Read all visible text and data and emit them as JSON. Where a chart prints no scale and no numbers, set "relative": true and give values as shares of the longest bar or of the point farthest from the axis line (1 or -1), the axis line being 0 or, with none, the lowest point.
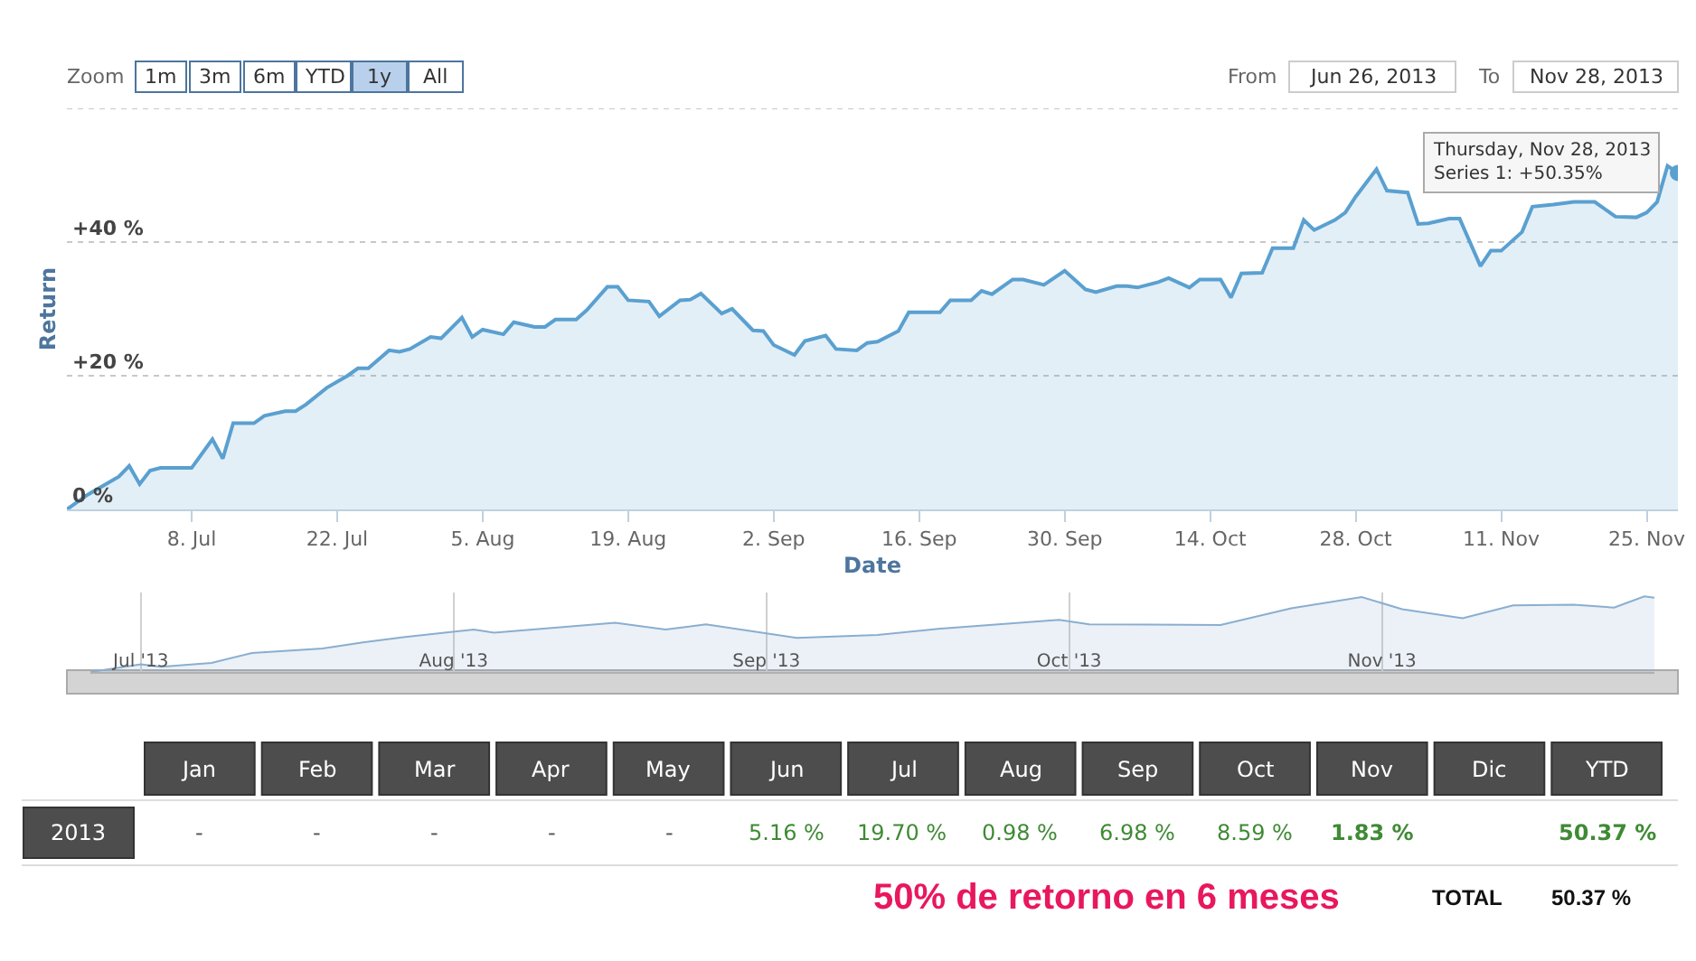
{
  "chart_data": [
    {
      "type": "area",
      "xlabel": "Date",
      "ylabel": "Return",
      "x": [
        "2013-06-26",
        "2013-06-28",
        "2013-07-01",
        "2013-07-02",
        "2013-07-03",
        "2013-07-04",
        "2013-07-05",
        "2013-07-08",
        "2013-07-10",
        "2013-07-11",
        "2013-07-12",
        "2013-07-14",
        "2013-07-15",
        "2013-07-17",
        "2013-07-18",
        "2013-07-19",
        "2013-07-21",
        "2013-07-23",
        "2013-07-24",
        "2013-07-25",
        "2013-07-27",
        "2013-07-28",
        "2013-07-29",
        "2013-07-31",
        "2013-08-01",
        "2013-08-03",
        "2013-08-04",
        "2013-08-05",
        "2013-08-07",
        "2013-08-08",
        "2013-08-10",
        "2013-08-11",
        "2013-08-12",
        "2013-08-14",
        "2013-08-15",
        "2013-08-17",
        "2013-08-18",
        "2013-08-19",
        "2013-08-21",
        "2013-08-22",
        "2013-08-24",
        "2013-08-25",
        "2013-08-26",
        "2013-08-28",
        "2013-08-29",
        "2013-08-31",
        "2013-09-01",
        "2013-09-02",
        "2013-09-04",
        "2013-09-05",
        "2013-09-07",
        "2013-09-08",
        "2013-09-10",
        "2013-09-11",
        "2013-09-12",
        "2013-09-14",
        "2013-09-15",
        "2013-09-18",
        "2013-09-19",
        "2013-09-21",
        "2013-09-22",
        "2013-09-23",
        "2013-09-25",
        "2013-09-26",
        "2013-09-28",
        "2013-09-30",
        "2013-10-02",
        "2013-10-03",
        "2013-10-05",
        "2013-10-06",
        "2013-10-07",
        "2013-10-09",
        "2013-10-10",
        "2013-10-12",
        "2013-10-13",
        "2013-10-15",
        "2013-10-16",
        "2013-10-17",
        "2013-10-19",
        "2013-10-20",
        "2013-10-22",
        "2013-10-23",
        "2013-10-24",
        "2013-10-26",
        "2013-10-27",
        "2013-10-28",
        "2013-10-30",
        "2013-10-31",
        "2013-11-02",
        "2013-11-03",
        "2013-11-04",
        "2013-11-06",
        "2013-11-07",
        "2013-11-09",
        "2013-11-10",
        "2013-11-11",
        "2013-11-13",
        "2013-11-14",
        "2013-11-16",
        "2013-11-18",
        "2013-11-20",
        "2013-11-22",
        "2013-11-24",
        "2013-11-25",
        "2013-11-26",
        "2013-11-27",
        "2013-11-28"
      ],
      "series": [
        {
          "color": "#5aa0d0",
          "values": [
            0,
            2.2,
            4.9,
            6.5,
            3.8,
            5.8,
            6.2,
            6.2,
            10.5,
            7.6,
            12.9,
            12.9,
            14,
            14.7,
            14.7,
            15.7,
            18.2,
            20,
            21.1,
            21.1,
            23.8,
            23.6,
            24,
            25.8,
            25.6,
            28.7,
            25.8,
            26.9,
            26.2,
            28,
            27.3,
            27.3,
            28.4,
            28.4,
            29.8,
            33.3,
            33.3,
            31.3,
            31.1,
            28.9,
            31.3,
            31.4,
            32.3,
            29.3,
            30,
            26.8,
            26.7,
            24.6,
            23.1,
            25.2,
            26,
            24,
            23.8,
            24.9,
            25.1,
            26.7,
            29.5,
            29.5,
            31.3,
            31.3,
            32.7,
            32.2,
            34.4,
            34.4,
            33.6,
            35.7,
            32.9,
            32.5,
            33.4,
            33.4,
            33.2,
            34,
            34.6,
            33.2,
            34.4,
            34.4,
            31.7,
            35.3,
            35.4,
            39.1,
            39.1,
            43.3,
            41.8,
            43.3,
            44.4,
            46.8,
            50.9,
            47.7,
            47.4,
            42.7,
            42.8,
            43.5,
            43.5,
            36.4,
            38.7,
            38.7,
            41.5,
            45.3,
            45.6,
            46,
            46,
            43.8,
            43.7,
            44.4,
            46,
            51.4,
            50.35
          ]
        }
      ],
      "xlim": [
        "2013-06-26",
        "2013-11-28"
      ],
      "xticks": [
        {
          "value": "2013-07-08",
          "label": "8. Jul"
        },
        {
          "value": "2013-07-22",
          "label": "22. Jul"
        },
        {
          "value": "2013-08-05",
          "label": "5. Aug"
        },
        {
          "value": "2013-08-19",
          "label": "19. Aug"
        },
        {
          "value": "2013-09-02",
          "label": "2. Sep"
        },
        {
          "value": "2013-09-16",
          "label": "16. Sep"
        },
        {
          "value": "2013-09-30",
          "label": "30. Sep"
        },
        {
          "value": "2013-10-14",
          "label": "14. Oct"
        },
        {
          "value": "2013-10-28",
          "label": "28. Oct"
        },
        {
          "value": "2013-11-11",
          "label": "11. Nov"
        },
        {
          "value": "2013-11-25",
          "label": "25. Nov"
        }
      ],
      "ylim": [
        0,
        60
      ],
      "yticks": [
        {
          "value": 0,
          "label": "0 %"
        },
        {
          "value": 20,
          "label": "+20 %"
        },
        {
          "value": 40,
          "label": "+40 %"
        },
        {
          "value": 60,
          "label": null
        }
      ],
      "grid": "y",
      "marker": "none",
      "line_style": "solid",
      "annotations": [
        "Zoom",
        "1m",
        "3m",
        "6m",
        "YTD",
        "1y",
        "All",
        "From",
        "Jun 26, 2013",
        "To",
        "Nov 28, 2013",
        {
          "text": "Thursday, Nov 28, 2013\nSeries 1: +50.35%",
          "x": "2013-11-28",
          "y": 50.35
        }
      ]
    },
    {
      "type": "area",
      "relative": true,
      "tick_labels": "x",
      "grid": "x",
      "x": [
        "2013-06-26",
        "2013-07-01",
        "2013-07-03",
        "2013-07-08",
        "2013-07-12",
        "2013-07-19",
        "2013-07-23",
        "2013-07-27",
        "2013-08-03",
        "2013-08-05",
        "2013-08-17",
        "2013-08-22",
        "2013-08-26",
        "2013-09-04",
        "2013-09-12",
        "2013-09-18",
        "2013-09-30",
        "2013-10-03",
        "2013-10-16",
        "2013-10-23",
        "2013-10-30",
        "2013-11-03",
        "2013-11-09",
        "2013-11-14",
        "2013-11-20",
        "2013-11-24",
        "2013-11-27",
        "2013-11-28"
      ],
      "series": [
        {
          "color": "#8aaed0",
          "values": [
            0,
            0.1,
            0.07,
            0.12,
            0.25,
            0.31,
            0.39,
            0.46,
            0.56,
            0.52,
            0.65,
            0.56,
            0.63,
            0.45,
            0.49,
            0.57,
            0.69,
            0.63,
            0.62,
            0.84,
            0.99,
            0.83,
            0.71,
            0.88,
            0.89,
            0.85,
            1,
            0.98
          ]
        }
      ],
      "xlim": [
        "2013-06-26",
        "2013-11-28"
      ],
      "xticks": [
        {
          "value": "2013-07-01",
          "label": "Jul '13"
        },
        {
          "value": "2013-08-01",
          "label": "Aug '13"
        },
        {
          "value": "2013-09-01",
          "label": "Sep '13"
        },
        {
          "value": "2013-10-01",
          "label": "Oct '13"
        },
        {
          "value": "2013-11-01",
          "label": "Nov '13"
        }
      ]
    },
    {
      "type": "other",
      "categories": [
        "Jan",
        "Feb",
        "Mar",
        "Apr",
        "May",
        "Jun",
        "Jul",
        "Aug",
        "Sep",
        "Oct",
        "Nov",
        "Dic",
        "YTD"
      ],
      "y_categories": [
        "2013"
      ],
      "cell_labels": [
        [
          "-",
          "-",
          "-",
          "-",
          "-",
          "5.16 %",
          "19.70 %",
          "0.98 %",
          "6.98 %",
          "8.59 %",
          "1.83 %",
          null,
          "50.37 %"
        ]
      ],
      "annotations": [
        "50% de retorno en 6 meses",
        "TOTAL",
        "50.37 %"
      ]
    }
  ]
}
